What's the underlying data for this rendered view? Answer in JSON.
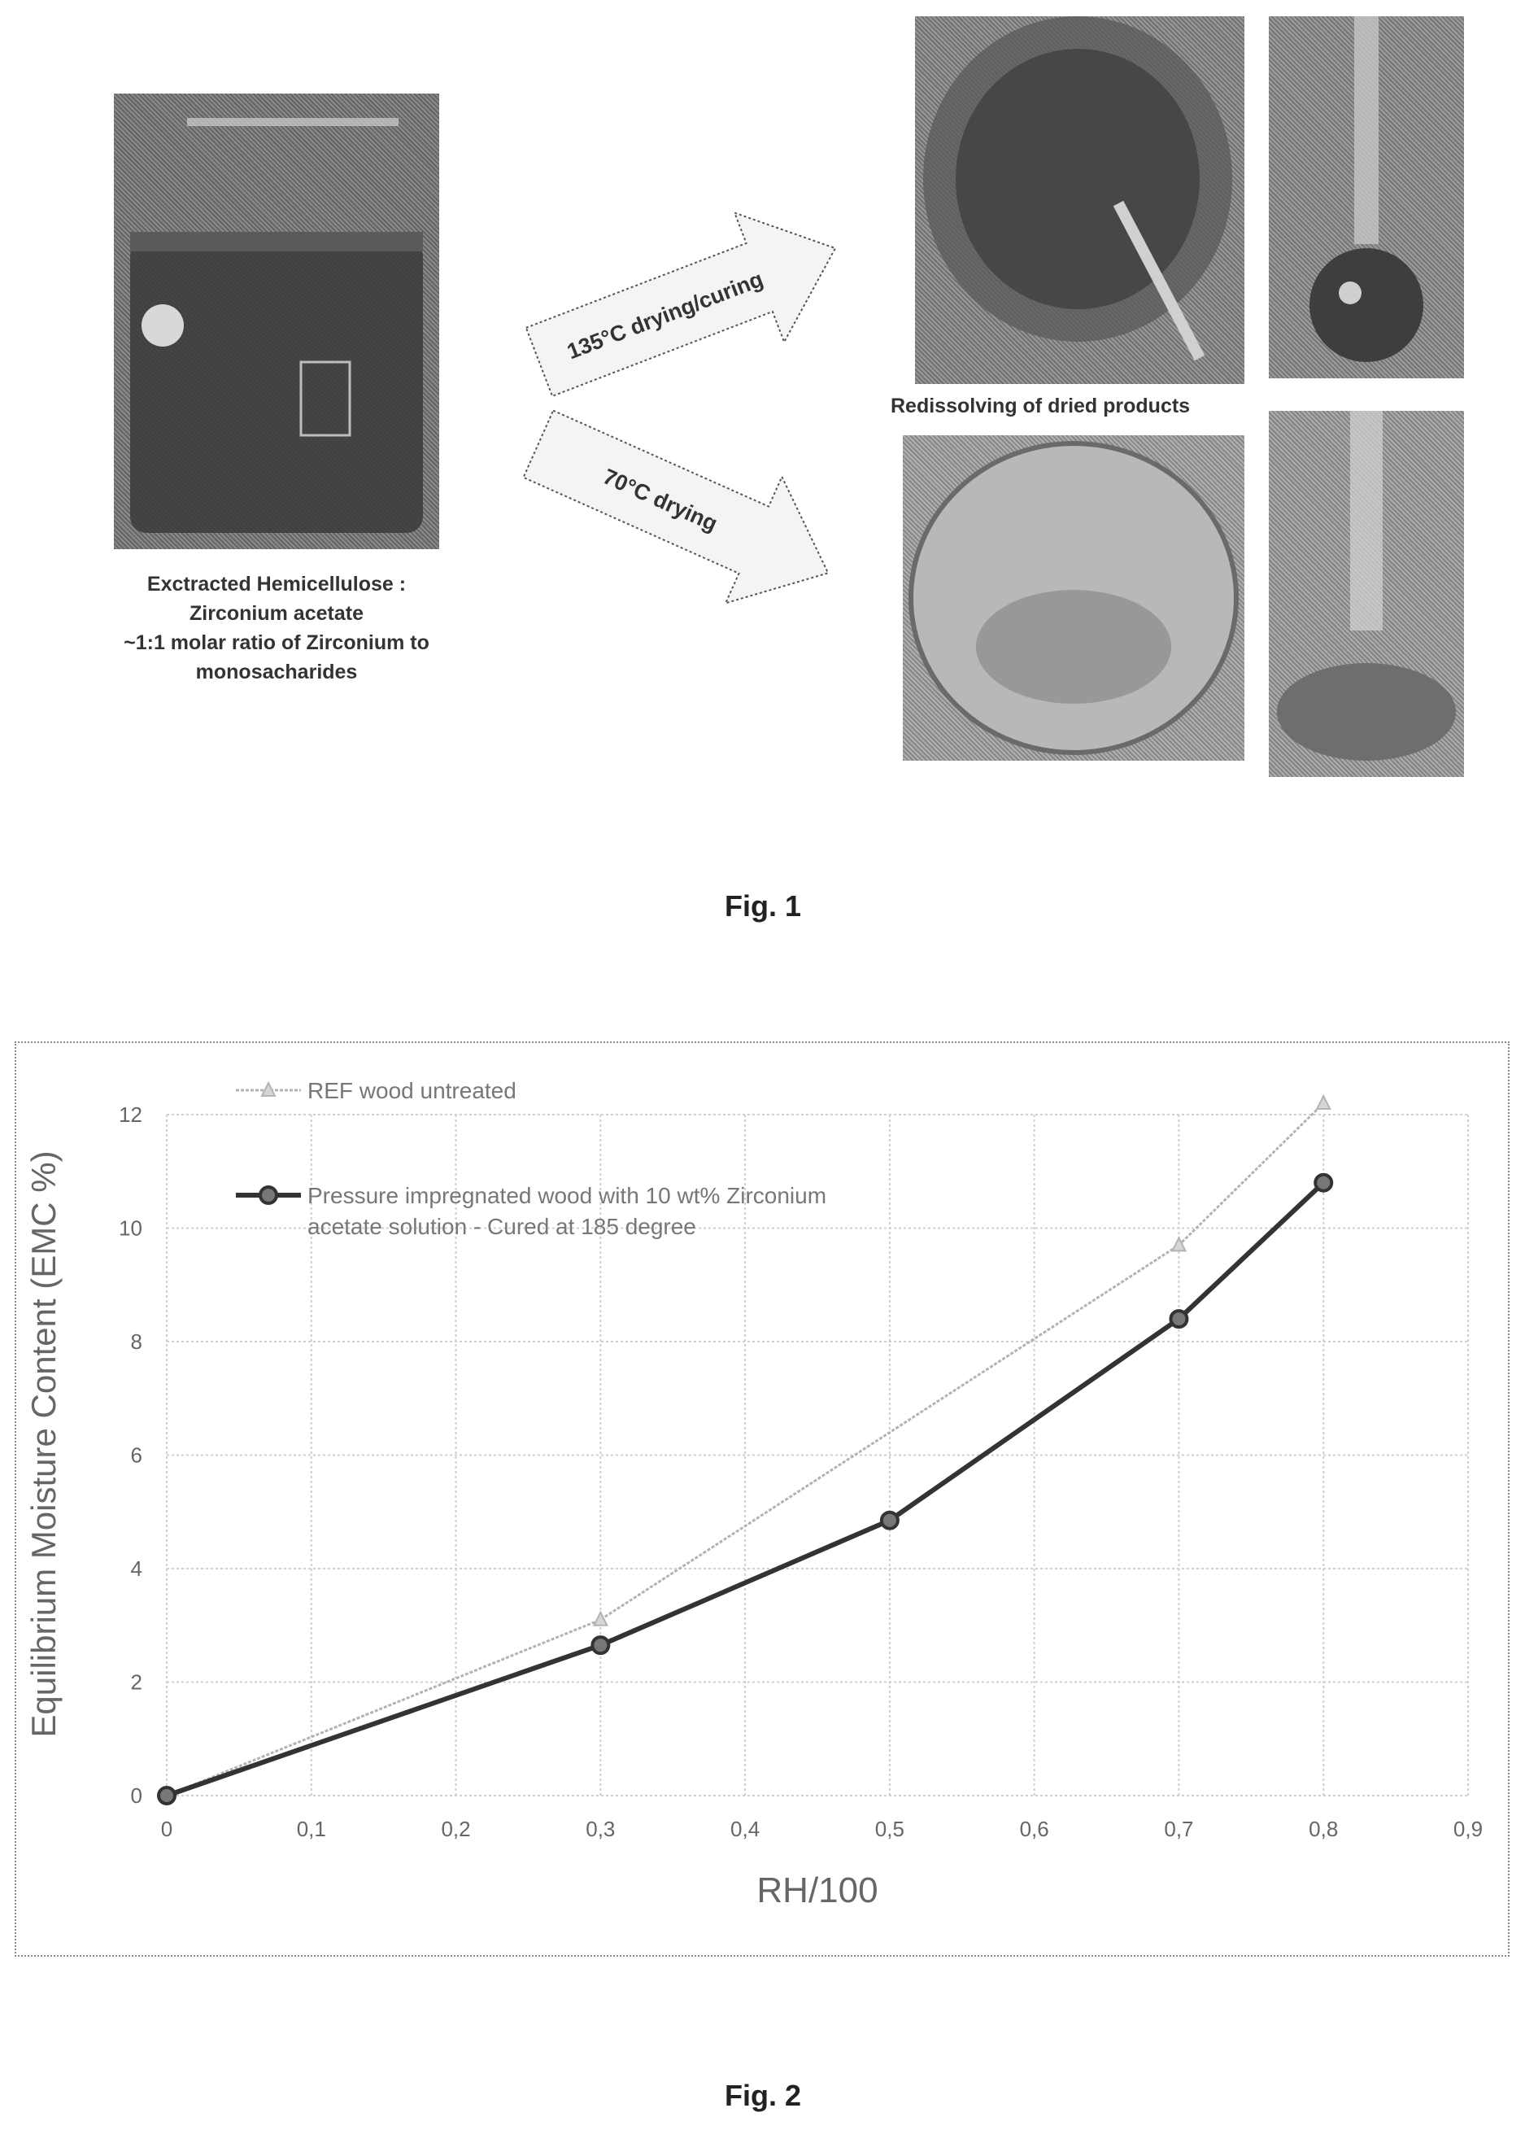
{
  "fig1": {
    "caption": "Fig. 1",
    "beaker_caption": [
      "Exctracted Hemicellulose :",
      "Zirconium acetate",
      "~1:1 molar ratio of Zirconium to",
      "monosacharides"
    ],
    "arrow_top": "135°C drying/curing",
    "arrow_bottom": "70°C drying",
    "redissolve_caption": "Redissolving of dried products"
  },
  "fig2": {
    "caption": "Fig. 2"
  },
  "chart_data": {
    "type": "line",
    "xlabel": "RH/100",
    "ylabel": "Equilibrium Moisture Content (EMC %)",
    "xlim": [
      0,
      0.9
    ],
    "ylim": [
      0,
      12
    ],
    "x_ticks": [
      "0",
      "0,1",
      "0,2",
      "0,3",
      "0,4",
      "0,5",
      "0,6",
      "0,7",
      "0,8",
      "0,9"
    ],
    "y_ticks": [
      "0",
      "2",
      "4",
      "6",
      "8",
      "10",
      "12"
    ],
    "grid": true,
    "legend_position": "top-left",
    "series": [
      {
        "name": "REF wood untreated",
        "color": "#b3b3b3",
        "marker": "triangle",
        "x": [
          0,
          0.3,
          0.7,
          0.8
        ],
        "y": [
          0,
          3.1,
          9.7,
          12.2
        ]
      },
      {
        "name": "Pressure impregnated wood with 10 wt% Zirconium acetate solution - Cured at 185 degree",
        "color": "#333333",
        "marker": "circle",
        "x": [
          0,
          0.3,
          0.5,
          0.7,
          0.8
        ],
        "y": [
          0,
          2.65,
          4.85,
          8.4,
          10.8
        ]
      }
    ]
  }
}
